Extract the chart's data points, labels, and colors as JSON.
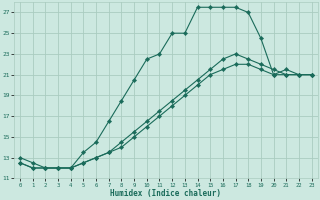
{
  "xlabel": "Humidex (Indice chaleur)",
  "background_color": "#cce8e0",
  "grid_color": "#aaccc0",
  "line_color": "#1a6b5a",
  "xlim": [
    -0.5,
    23.5
  ],
  "ylim": [
    11,
    28
  ],
  "yticks": [
    11,
    13,
    15,
    17,
    19,
    21,
    23,
    25,
    27
  ],
  "xticks": [
    0,
    1,
    2,
    3,
    4,
    5,
    6,
    7,
    8,
    9,
    10,
    11,
    12,
    13,
    14,
    15,
    16,
    17,
    18,
    19,
    20,
    21,
    22,
    23
  ],
  "series1_x": [
    0,
    1,
    2,
    3,
    4,
    5,
    6,
    7,
    8,
    9,
    10,
    11,
    12,
    13,
    14,
    15,
    16,
    17,
    18,
    19,
    20,
    21,
    22,
    23
  ],
  "series1_y": [
    13.0,
    12.5,
    12.0,
    12.0,
    12.0,
    13.5,
    14.5,
    16.5,
    18.5,
    20.5,
    22.5,
    23.0,
    25.0,
    25.0,
    27.5,
    27.5,
    27.5,
    27.5,
    27.0,
    24.5,
    21.0,
    21.5,
    21.0,
    21.0
  ],
  "series2_x": [
    0,
    1,
    2,
    3,
    4,
    5,
    6,
    7,
    8,
    9,
    10,
    11,
    12,
    13,
    14,
    15,
    16,
    17,
    18,
    19,
    20,
    21,
    22,
    23
  ],
  "series2_y": [
    12.5,
    12.0,
    12.0,
    12.0,
    12.0,
    12.5,
    13.0,
    13.5,
    14.5,
    15.5,
    16.5,
    17.5,
    18.5,
    19.5,
    20.5,
    21.5,
    22.5,
    23.0,
    22.5,
    22.0,
    21.5,
    21.0,
    21.0,
    21.0
  ],
  "series3_x": [
    0,
    1,
    2,
    3,
    4,
    5,
    6,
    7,
    8,
    9,
    10,
    11,
    12,
    13,
    14,
    15,
    16,
    17,
    18,
    19,
    20,
    21,
    22,
    23
  ],
  "series3_y": [
    12.5,
    12.0,
    12.0,
    12.0,
    12.0,
    12.5,
    13.0,
    13.5,
    14.0,
    15.0,
    16.0,
    17.0,
    18.0,
    19.0,
    20.0,
    21.0,
    21.5,
    22.0,
    22.0,
    21.5,
    21.0,
    21.0,
    21.0,
    21.0
  ]
}
